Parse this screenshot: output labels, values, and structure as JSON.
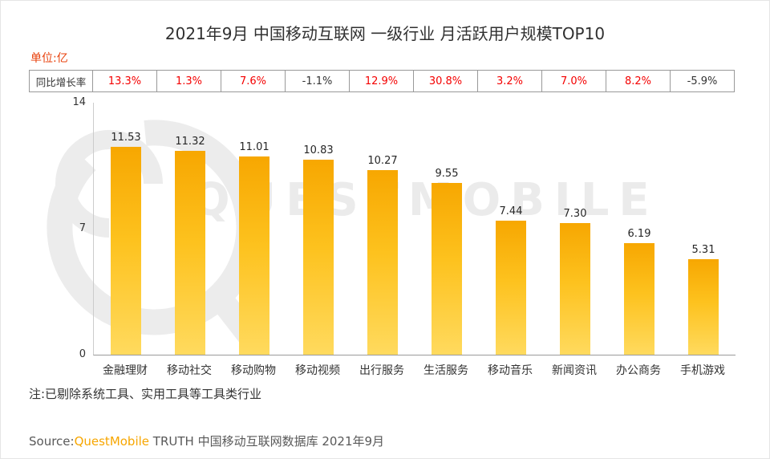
{
  "title": "2021年9月 中国移动互联网 一级行业 月活跃用户规模TOP10",
  "unit_label": "单位:亿",
  "growth_row": {
    "header": "同比增长率",
    "values": [
      "13.3%",
      "1.3%",
      "7.6%",
      "-1.1%",
      "12.9%",
      "30.8%",
      "3.2%",
      "7.0%",
      "8.2%",
      "-5.9%"
    ]
  },
  "y_axis": {
    "ticks": [
      "14",
      "7",
      "0"
    ]
  },
  "chart_data": {
    "type": "bar",
    "title": "2021年9月 中国移动互联网 一级行业 月活跃用户规模TOP10",
    "unit": "亿",
    "categories": [
      "金融理财",
      "移动社交",
      "移动购物",
      "移动视频",
      "出行服务",
      "生活服务",
      "移动音乐",
      "新闻资讯",
      "办公商务",
      "手机游戏"
    ],
    "values": [
      11.53,
      11.32,
      11.01,
      10.83,
      10.27,
      9.55,
      7.44,
      7.3,
      6.19,
      5.31
    ],
    "value_labels": [
      "11.53",
      "11.32",
      "11.01",
      "10.83",
      "10.27",
      "9.55",
      "7.44",
      "7.30",
      "6.19",
      "5.31"
    ],
    "yoy_growth": [
      "13.3%",
      "1.3%",
      "7.6%",
      "-1.1%",
      "12.9%",
      "30.8%",
      "3.2%",
      "7.0%",
      "8.2%",
      "-5.9%"
    ],
    "ylim": [
      0,
      14
    ],
    "yticks": [
      0,
      7,
      14
    ],
    "grid": false
  },
  "note": "注:已剔除系统工具、实用工具等工具类行业",
  "source": {
    "prefix": "Source:",
    "brand": "QuestMobile",
    "suffix": " TRUTH 中国移动互联网数据库 2021年9月"
  },
  "watermark": {
    "text": "QUESTMOBILE"
  },
  "colors": {
    "positive_growth": "#F40000",
    "negative_growth": "#333333",
    "bar_gradient_top": "#F7A701",
    "bar_gradient_bottom": "#FFDA5E",
    "brand_orange": "#F7A600",
    "unit_label_red": "#E8420D",
    "watermark_gray": "#ECECEC"
  }
}
